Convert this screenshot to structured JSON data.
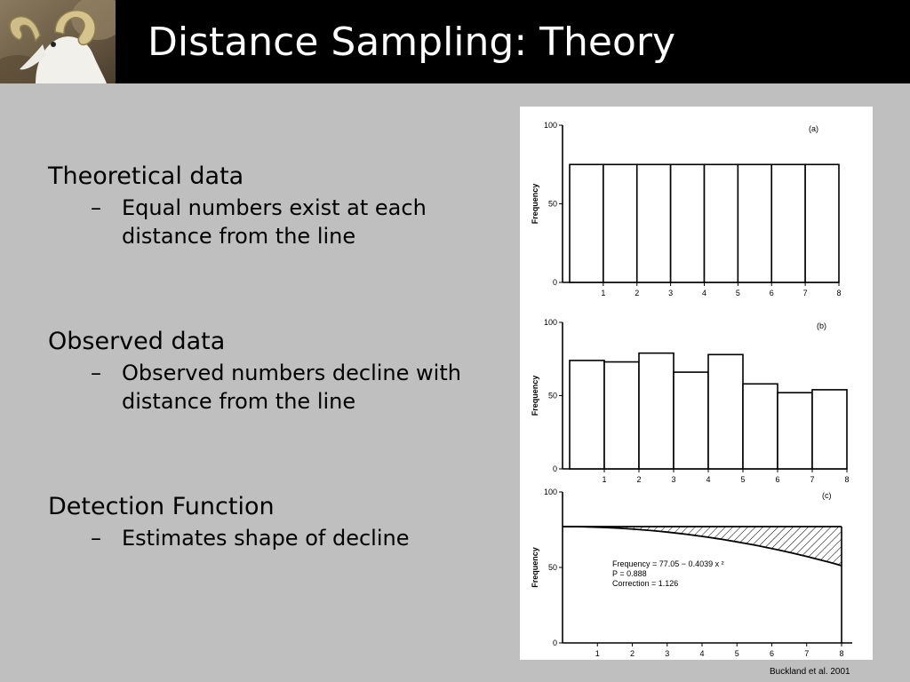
{
  "slide": {
    "title": "Distance Sampling: Theory",
    "citation": "Buckland et al. 2001"
  },
  "bullets": [
    {
      "heading": "Theoretical data",
      "sub": "Equal numbers exist at each distance from the line"
    },
    {
      "heading": "Observed data",
      "sub": "Observed numbers decline with distance from the line"
    },
    {
      "heading": "Detection Function",
      "sub": "Estimates shape of decline"
    }
  ],
  "dash": "–",
  "chart_data": [
    {
      "type": "bar",
      "panel": "(a)",
      "ylabel": "Frequency",
      "categories": [
        "1",
        "2",
        "3",
        "4",
        "5",
        "6",
        "7",
        "8"
      ],
      "yticks": [
        "0",
        "50",
        "100"
      ],
      "ylim": [
        0,
        100
      ],
      "values": [
        75,
        75,
        75,
        75,
        75,
        75,
        75,
        75
      ]
    },
    {
      "type": "bar",
      "panel": "(b)",
      "ylabel": "Frequency",
      "categories": [
        "1",
        "2",
        "3",
        "4",
        "5",
        "6",
        "7",
        "8"
      ],
      "yticks": [
        "0",
        "50",
        "100"
      ],
      "ylim": [
        0,
        100
      ],
      "values": [
        74,
        73,
        79,
        66,
        78,
        58,
        52,
        54
      ]
    },
    {
      "type": "line",
      "panel": "(c)",
      "ylabel": "Frequency",
      "x": [
        "1",
        "2",
        "3",
        "4",
        "5",
        "6",
        "7",
        "8"
      ],
      "yticks": [
        "0",
        "50",
        "100"
      ],
      "ylim": [
        0,
        100
      ],
      "xlim": [
        0,
        8
      ],
      "flat_level": 77.05,
      "curve": {
        "intercept": 77.05,
        "coef": 0.4039
      },
      "hatched_region": "between flat line and fitted curve",
      "annotation": [
        "Frequency = 77.05 − 0.4039 x ²",
        "P = 0.888",
        "Correction = 1.126"
      ]
    }
  ]
}
